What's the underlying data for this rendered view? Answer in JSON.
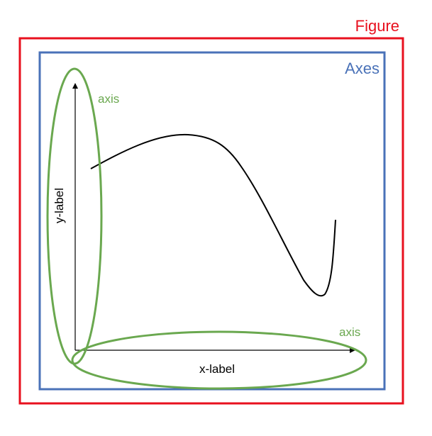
{
  "figure": {
    "label": "Figure",
    "color": "#e8101e"
  },
  "axes": {
    "label": "Axes",
    "color": "#4a72b8"
  },
  "axis_annotations": {
    "y_axis_label": "axis",
    "x_axis_label": "axis",
    "color": "#6aa84f"
  },
  "plot": {
    "ylabel": "y-label",
    "xlabel": "x-label",
    "line_color": "#000000"
  }
}
